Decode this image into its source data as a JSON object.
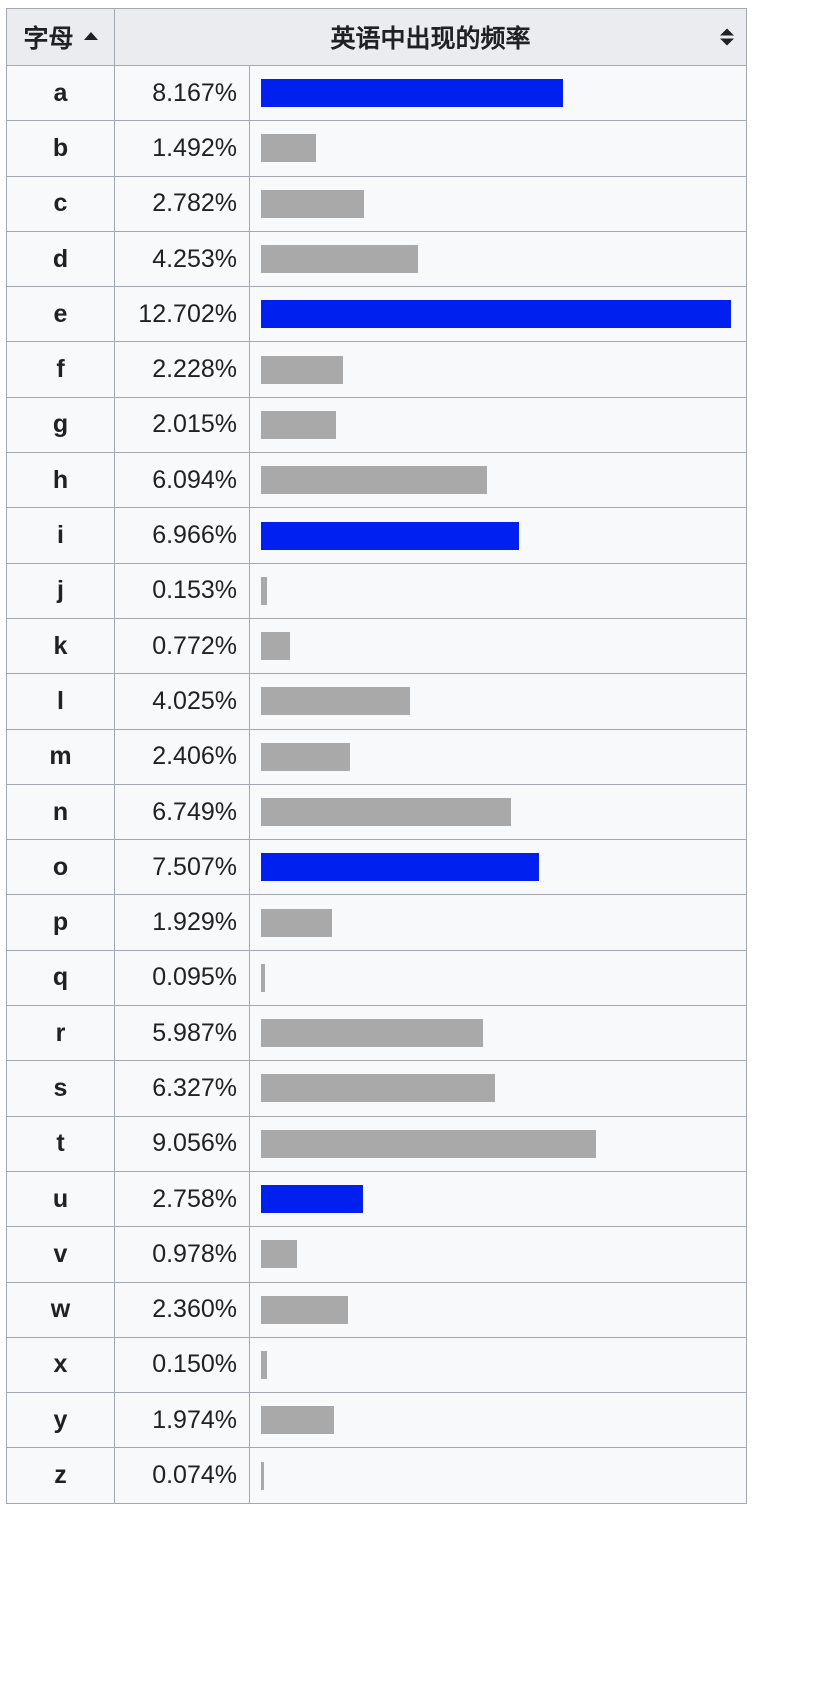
{
  "table": {
    "header_letter": "字母",
    "header_frequency": "英语中出现的频率"
  },
  "colors": {
    "highlight": "#0020f0",
    "default": "#a9a9a9"
  },
  "chart_data": {
    "type": "bar",
    "orientation": "horizontal",
    "title": "",
    "xlabel": "",
    "ylabel": "",
    "xlim": [
      0,
      12.702
    ],
    "value_suffix": "%",
    "categories": [
      "a",
      "b",
      "c",
      "d",
      "e",
      "f",
      "g",
      "h",
      "i",
      "j",
      "k",
      "l",
      "m",
      "n",
      "o",
      "p",
      "q",
      "r",
      "s",
      "t",
      "u",
      "v",
      "w",
      "x",
      "y",
      "z"
    ],
    "labels": [
      "8.167%",
      "1.492%",
      "2.782%",
      "4.253%",
      "12.702%",
      "2.228%",
      "2.015%",
      "6.094%",
      "6.966%",
      "0.153%",
      "0.772%",
      "4.025%",
      "2.406%",
      "6.749%",
      "7.507%",
      "1.929%",
      "0.095%",
      "5.987%",
      "6.327%",
      "9.056%",
      "2.758%",
      "0.978%",
      "2.360%",
      "0.150%",
      "1.974%",
      "0.074%"
    ],
    "values": [
      8.167,
      1.492,
      2.782,
      4.253,
      12.702,
      2.228,
      2.015,
      6.094,
      6.966,
      0.153,
      0.772,
      4.025,
      2.406,
      6.749,
      7.507,
      1.929,
      0.095,
      5.987,
      6.327,
      9.056,
      2.758,
      0.978,
      2.36,
      0.15,
      1.974,
      0.074
    ],
    "highlighted": [
      "a",
      "e",
      "i",
      "o",
      "u"
    ]
  }
}
